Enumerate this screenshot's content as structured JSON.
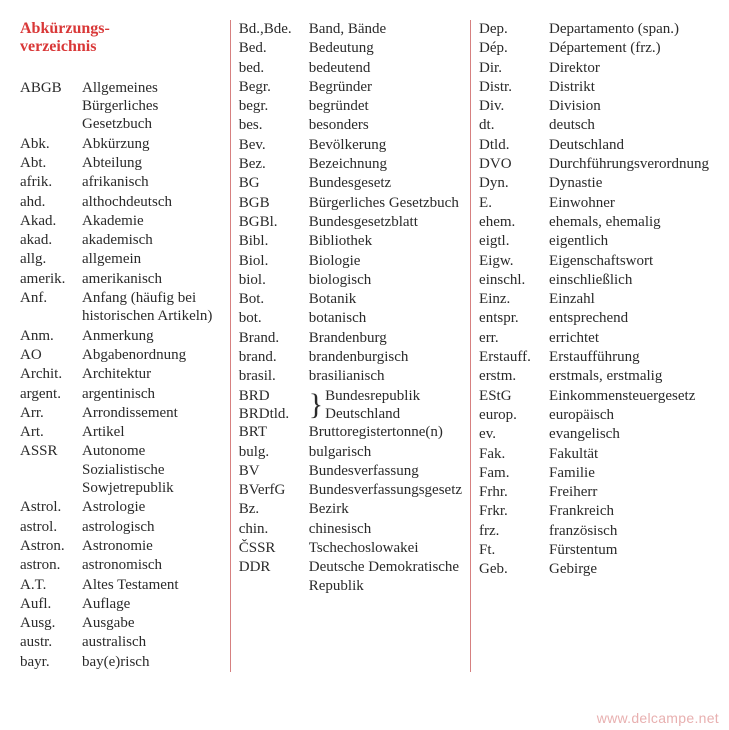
{
  "heading": "Abkürzungs-\nverzeichnis",
  "columns": [
    {
      "entries": [
        {
          "abbr": "ABGB",
          "def": "Allgemeines Bürgerliches Gesetzbuch"
        },
        {
          "abbr": "Abk.",
          "def": "Abkürzung"
        },
        {
          "abbr": "Abt.",
          "def": "Abteilung"
        },
        {
          "abbr": "afrik.",
          "def": "afrikanisch"
        },
        {
          "abbr": "ahd.",
          "def": "althochdeutsch"
        },
        {
          "abbr": "Akad.",
          "def": "Akademie"
        },
        {
          "abbr": "akad.",
          "def": "akademisch"
        },
        {
          "abbr": "allg.",
          "def": "allgemein"
        },
        {
          "abbr": "amerik.",
          "def": "amerikanisch"
        },
        {
          "abbr": "Anf.",
          "def": "Anfang (häufig bei historischen Artikeln)"
        },
        {
          "abbr": "Anm.",
          "def": "Anmerkung"
        },
        {
          "abbr": "AO",
          "def": "Abgabenordnung"
        },
        {
          "abbr": "Archit.",
          "def": "Architektur"
        },
        {
          "abbr": "argent.",
          "def": "argentinisch"
        },
        {
          "abbr": "Arr.",
          "def": "Arrondissement"
        },
        {
          "abbr": "Art.",
          "def": "Artikel"
        },
        {
          "abbr": "ASSR",
          "def": "Autonome Sozialistische Sowjetrepublik"
        },
        {
          "abbr": "Astrol.",
          "def": "Astrologie"
        },
        {
          "abbr": "astrol.",
          "def": "astrologisch"
        },
        {
          "abbr": "Astron.",
          "def": "Astronomie"
        },
        {
          "abbr": "astron.",
          "def": "astronomisch"
        },
        {
          "abbr": "A.T.",
          "def": "Altes Testament"
        },
        {
          "abbr": "Aufl.",
          "def": "Auflage"
        },
        {
          "abbr": "Ausg.",
          "def": "Ausgabe"
        },
        {
          "abbr": "austr.",
          "def": "australisch"
        },
        {
          "abbr": "bayr.",
          "def": "bay(e)risch"
        }
      ]
    },
    {
      "entries": [
        {
          "abbr": "Bd.,Bde.",
          "def": "Band, Bände"
        },
        {
          "abbr": "Bed.",
          "def": "Bedeutung"
        },
        {
          "abbr": "bed.",
          "def": "bedeutend"
        },
        {
          "abbr": "Begr.",
          "def": "Begründer"
        },
        {
          "abbr": "begr.",
          "def": "begründet"
        },
        {
          "abbr": "bes.",
          "def": "besonders"
        },
        {
          "abbr": "Bev.",
          "def": "Bevölkerung"
        },
        {
          "abbr": "Bez.",
          "def": "Bezeichnung"
        },
        {
          "abbr": "BG",
          "def": "Bundesgesetz"
        },
        {
          "abbr": "BGB",
          "def": "Bürgerliches Gesetzbuch"
        },
        {
          "abbr": "BGBl.",
          "def": "Bundesgesetzblatt"
        },
        {
          "abbr": "Bibl.",
          "def": "Bibliothek"
        },
        {
          "abbr": "Biol.",
          "def": "Biologie"
        },
        {
          "abbr": "biol.",
          "def": "biologisch"
        },
        {
          "abbr": "Bot.",
          "def": "Botanik"
        },
        {
          "abbr": "bot.",
          "def": "botanisch"
        },
        {
          "abbr": "Brand.",
          "def": "Brandenburg"
        },
        {
          "abbr": "brand.",
          "def": "brandenburgisch"
        },
        {
          "abbr": "brasil.",
          "def": "brasilianisch"
        }
      ],
      "bracket_group": {
        "left": [
          "BRD",
          "BRDtld."
        ],
        "right": "Bundesrepublik Deutschland"
      },
      "entries_after": [
        {
          "abbr": "BRT",
          "def": "Bruttoregistertonne(n)"
        },
        {
          "abbr": "bulg.",
          "def": "bulgarisch"
        },
        {
          "abbr": "BV",
          "def": "Bundesverfassung"
        },
        {
          "abbr": "BVerfG",
          "def": "Bundesverfassungsgesetz"
        },
        {
          "abbr": "Bz.",
          "def": "Bezirk"
        },
        {
          "abbr": "chin.",
          "def": "chinesisch"
        },
        {
          "abbr": "ČSSR",
          "def": "Tschechoslowakei"
        },
        {
          "abbr": "DDR",
          "def": "Deutsche Demokratische Republik"
        }
      ]
    },
    {
      "entries": [
        {
          "abbr": "Dep.",
          "def": "Departamento (span.)"
        },
        {
          "abbr": "Dép.",
          "def": "Département (frz.)"
        },
        {
          "abbr": "Dir.",
          "def": "Direktor"
        },
        {
          "abbr": "Distr.",
          "def": "Distrikt"
        },
        {
          "abbr": "Div.",
          "def": "Division"
        },
        {
          "abbr": "dt.",
          "def": "deutsch"
        },
        {
          "abbr": "Dtld.",
          "def": "Deutschland"
        },
        {
          "abbr": "DVO",
          "def": "Durchführungsverordnung"
        },
        {
          "abbr": "Dyn.",
          "def": "Dynastie"
        },
        {
          "abbr": "E.",
          "def": "Einwohner"
        },
        {
          "abbr": "ehem.",
          "def": "ehemals, ehemalig"
        },
        {
          "abbr": "eigtl.",
          "def": "eigentlich"
        },
        {
          "abbr": "Eigw.",
          "def": "Eigenschaftswort"
        },
        {
          "abbr": "einschl.",
          "def": "einschließlich"
        },
        {
          "abbr": "Einz.",
          "def": "Einzahl"
        },
        {
          "abbr": "entspr.",
          "def": "entsprechend"
        },
        {
          "abbr": "err.",
          "def": "errichtet"
        },
        {
          "abbr": "Erstauff.",
          "def": "Erstaufführung"
        },
        {
          "abbr": "erstm.",
          "def": "erstmals, erstmalig"
        },
        {
          "abbr": "EStG",
          "def": "Einkommensteuergesetz"
        },
        {
          "abbr": "europ.",
          "def": "europäisch"
        },
        {
          "abbr": "ev.",
          "def": "evangelisch"
        },
        {
          "abbr": "Fak.",
          "def": "Fakultät"
        },
        {
          "abbr": "Fam.",
          "def": "Familie"
        },
        {
          "abbr": "Frhr.",
          "def": "Freiherr"
        },
        {
          "abbr": "Frkr.",
          "def": "Frankreich"
        },
        {
          "abbr": "frz.",
          "def": "französisch"
        },
        {
          "abbr": "Ft.",
          "def": "Fürstentum"
        },
        {
          "abbr": "Geb.",
          "def": "Gebirge"
        }
      ]
    }
  ],
  "watermark": "www.delcampe.net"
}
